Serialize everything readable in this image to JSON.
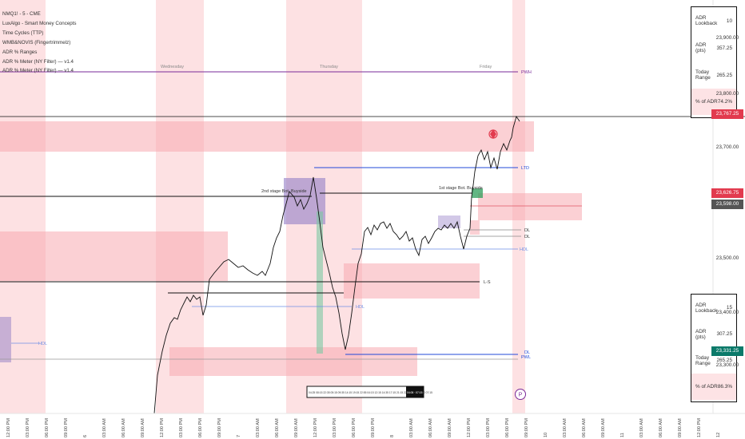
{
  "legend": [
    "NMQ1! - 5 - CME",
    "LuxAlgo - Smart Money Concepts",
    "Time Cycles (TTP)",
    "WMB&NOVIS (Fingertrimmelz)",
    "ADR % Ranges",
    "ADR % Meter (NY Filter) — v1.4",
    "ADR % Meter (NY Filter) — v1.4"
  ],
  "day_labels": [
    "Wednesday",
    "Thursday",
    "Friday"
  ],
  "price_labels": [
    {
      "text": "23,900.00",
      "color": ""
    },
    {
      "text": "23,800.00",
      "color": ""
    },
    {
      "text": "23,767.25",
      "color": "#e23a4e"
    },
    {
      "text": "23,700.00",
      "color": ""
    },
    {
      "text": "23,626.75",
      "color": "#e23a4e"
    },
    {
      "text": "23,598.00",
      "color": "#555555"
    },
    {
      "text": "23,500.00",
      "color": ""
    },
    {
      "text": "23,400.00",
      "color": ""
    },
    {
      "text": "23,331.25",
      "color": "#0b7a6a"
    },
    {
      "text": "23,300.00",
      "color": ""
    }
  ],
  "adr_top": {
    "rows": [
      [
        "ADR Lookback",
        "10"
      ],
      [
        "ADR (pts)",
        "357.25"
      ],
      [
        "Today Range",
        "265.25"
      ],
      [
        "% of ADR",
        "74.2%"
      ]
    ]
  },
  "adr_bottom": {
    "rows": [
      [
        "ADR Lookback",
        "15"
      ],
      [
        "ADR (pts)",
        "307.25"
      ],
      [
        "Today Range",
        "265.25"
      ],
      [
        "% of ADR",
        "86.3%"
      ]
    ]
  },
  "annotations": {
    "pwh": "PWH",
    "pwl": "PWL",
    "stage1": "2nd stage Bot. Buyside",
    "stage2": "1st stage Bot. Buyside",
    "ltd": "LTD",
    "hdl1": "HDL",
    "hdl2": "HDL",
    "hdl3": "HDL",
    "ls": "L-S",
    "dl1": "DL",
    "dl2": "DL",
    "dl3": "DL",
    "circle_marker": "P"
  },
  "time_readout": "04:25 08:15 22:35 05:15 09:35 14:15 19:15 22:55 04:15 12:15 14:35 17:15 21:15 22:55 04:05 15:00 07:15",
  "time_readout_hl": "04:05 · 07:15",
  "x_labels": [
    "12:00 PM",
    "03:00 PM",
    "06:00 PM",
    "09:00 PM",
    "6",
    "03:00 AM",
    "06:00 AM",
    "09:00 AM",
    "12:00 PM",
    "03:00 PM",
    "06:00 PM",
    "09:00 PM",
    "7",
    "03:00 AM",
    "06:00 AM",
    "09:00 AM",
    "12:00 PM",
    "03:00 PM",
    "06:00 PM",
    "09:00 PM",
    "8",
    "03:00 AM",
    "06:00 AM",
    "09:00 AM",
    "12:00 PM",
    "03:00 PM",
    "06:00 PM",
    "09:00 PM",
    "10",
    "03:00 AM",
    "06:00 AM",
    "09:00 AM",
    "11",
    "03:00 AM",
    "06:00 AM",
    "09:00 AM",
    "12:00 PM",
    "12"
  ],
  "colors": {
    "session_band": "#fde1e3",
    "zone_red": "#f7a9b0",
    "zone_purple": "#9b86c9",
    "blue_line": "#2249d8",
    "purple_line": "#7a2a99",
    "price_line": "#111111"
  }
}
